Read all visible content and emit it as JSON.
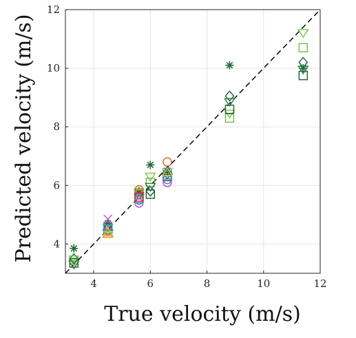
{
  "chart_data": {
    "type": "scatter",
    "title": "",
    "xlabel": "True velocity (m/s)",
    "ylabel": "Predicted velocity (m/s)",
    "xlim": [
      3,
      12
    ],
    "ylim": [
      3,
      12
    ],
    "xticks": [
      4,
      6,
      8,
      10,
      12
    ],
    "yticks": [
      4,
      6,
      8,
      10,
      12
    ],
    "grid": true,
    "legend": "none",
    "reference_line": {
      "x": [
        3,
        12
      ],
      "y": [
        3,
        12
      ],
      "style": "dashed",
      "color": "#111111"
    },
    "series": [
      {
        "marker": "asterisk",
        "color": "#1e6b3a",
        "x": [
          3.3,
          4.5,
          5.6,
          6.0,
          6.6,
          8.8,
          11.4
        ],
        "y": [
          3.85,
          4.7,
          5.8,
          6.7,
          6.5,
          10.1,
          10.0
        ]
      },
      {
        "marker": "diamond",
        "color": "#1f5e34",
        "x": [
          3.3,
          4.5,
          5.6,
          6.0,
          6.6,
          8.8,
          11.4
        ],
        "y": [
          3.5,
          4.6,
          5.7,
          5.8,
          6.4,
          9.05,
          10.2
        ]
      },
      {
        "marker": "triangle-down",
        "color": "#7cc644",
        "x": [
          3.3,
          4.5,
          5.6,
          6.0,
          6.6,
          8.8,
          11.4
        ],
        "y": [
          3.4,
          4.55,
          5.75,
          6.3,
          6.45,
          8.45,
          11.2
        ]
      },
      {
        "marker": "square",
        "color": "#6abf3e",
        "x": [
          3.3,
          4.5,
          5.6,
          6.0,
          6.6,
          8.8,
          11.4
        ],
        "y": [
          3.45,
          4.6,
          5.7,
          6.1,
          6.35,
          8.3,
          10.7
        ]
      },
      {
        "marker": "square",
        "color": "#1d5f3b",
        "x": [
          3.3,
          4.5,
          5.6,
          6.0,
          6.6,
          8.8,
          11.4
        ],
        "y": [
          3.35,
          4.5,
          5.6,
          5.7,
          6.3,
          8.6,
          9.75
        ]
      },
      {
        "marker": "triangle-down",
        "color": "#2a7a45",
        "x": [
          3.3,
          6.0,
          8.8,
          11.4
        ],
        "y": [
          3.3,
          5.95,
          8.85,
          9.95
        ]
      },
      {
        "marker": "circle",
        "color": "#d35f1a",
        "x": [
          4.5,
          5.6,
          6.6
        ],
        "y": [
          4.45,
          5.85,
          6.8
        ]
      },
      {
        "marker": "circle",
        "color": "#a04fc8",
        "x": [
          4.5,
          5.6,
          6.6
        ],
        "y": [
          4.65,
          5.4,
          6.1
        ]
      },
      {
        "marker": "circle",
        "color": "#7b4fc2",
        "x": [
          5.6,
          6.6
        ],
        "y": [
          5.5,
          6.2
        ]
      },
      {
        "marker": "x",
        "color": "#b257c7",
        "x": [
          4.5,
          5.6
        ],
        "y": [
          4.85,
          5.7
        ]
      },
      {
        "marker": "triangle-up",
        "color": "#e07b1e",
        "x": [
          4.5,
          5.6
        ],
        "y": [
          4.35,
          5.8
        ]
      },
      {
        "marker": "triangle-up",
        "color": "#2d45a8",
        "x": [
          4.5,
          6.6
        ],
        "y": [
          4.6,
          6.5
        ]
      },
      {
        "marker": "square",
        "color": "#17a9b3",
        "x": [
          4.5,
          5.6,
          6.6
        ],
        "y": [
          4.5,
          5.55,
          6.35
        ]
      },
      {
        "marker": "triangle-up",
        "color": "#e8c020",
        "x": [
          4.5,
          6.6
        ],
        "y": [
          4.4,
          6.45
        ]
      },
      {
        "marker": "square",
        "color": "#c52a3a",
        "x": [
          5.6
        ],
        "y": [
          5.6
        ]
      }
    ]
  }
}
